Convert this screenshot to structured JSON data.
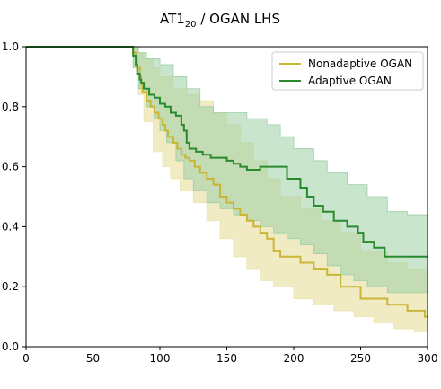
{
  "chart_data": {
    "type": "line",
    "title": "AT1",
    "title_subscript": "20",
    "title_rest": " / OGAN LHS",
    "xlabel": "",
    "ylabel": "",
    "xlim": [
      0,
      300
    ],
    "ylim": [
      0,
      1.0
    ],
    "x_ticks": [
      0,
      50,
      100,
      150,
      200,
      250,
      300
    ],
    "y_ticks": [
      0.0,
      0.2,
      0.4,
      0.6,
      0.8,
      1.0
    ],
    "y_tick_labels": [
      "0.0",
      "0.2",
      "0.4",
      "0.6",
      "0.8",
      "1.0"
    ],
    "grid": false,
    "legend": "top-right",
    "series": [
      {
        "name": "Nonadaptive OGAN",
        "color": "#c9b536",
        "band_color": "#ece4b0",
        "step": [
          [
            0,
            1.0
          ],
          [
            78,
            1.0
          ],
          [
            80,
            0.98
          ],
          [
            82,
            0.96
          ],
          [
            83,
            0.93
          ],
          [
            85,
            0.9
          ],
          [
            86,
            0.88
          ],
          [
            87,
            0.85
          ],
          [
            90,
            0.82
          ],
          [
            93,
            0.8
          ],
          [
            96,
            0.78
          ],
          [
            99,
            0.76
          ],
          [
            102,
            0.74
          ],
          [
            104,
            0.72
          ],
          [
            106,
            0.7
          ],
          [
            110,
            0.68
          ],
          [
            113,
            0.66
          ],
          [
            116,
            0.64
          ],
          [
            119,
            0.63
          ],
          [
            122,
            0.62
          ],
          [
            126,
            0.6
          ],
          [
            130,
            0.58
          ],
          [
            135,
            0.56
          ],
          [
            140,
            0.54
          ],
          [
            145,
            0.5
          ],
          [
            150,
            0.48
          ],
          [
            155,
            0.46
          ],
          [
            160,
            0.44
          ],
          [
            165,
            0.42
          ],
          [
            170,
            0.4
          ],
          [
            175,
            0.38
          ],
          [
            180,
            0.36
          ],
          [
            185,
            0.32
          ],
          [
            190,
            0.3
          ],
          [
            205,
            0.28
          ],
          [
            215,
            0.26
          ],
          [
            225,
            0.24
          ],
          [
            235,
            0.2
          ],
          [
            250,
            0.16
          ],
          [
            270,
            0.14
          ],
          [
            285,
            0.12
          ],
          [
            298,
            0.1
          ],
          [
            300,
            0.1
          ]
        ],
        "upper": [
          [
            0,
            1.0
          ],
          [
            78,
            1.0
          ],
          [
            80,
            1.0
          ],
          [
            84,
            0.98
          ],
          [
            88,
            0.96
          ],
          [
            95,
            0.93
          ],
          [
            100,
            0.9
          ],
          [
            110,
            0.86
          ],
          [
            120,
            0.84
          ],
          [
            130,
            0.82
          ],
          [
            140,
            0.78
          ],
          [
            150,
            0.74
          ],
          [
            160,
            0.68
          ],
          [
            170,
            0.62
          ],
          [
            180,
            0.56
          ],
          [
            190,
            0.5
          ],
          [
            205,
            0.46
          ],
          [
            220,
            0.42
          ],
          [
            235,
            0.38
          ],
          [
            250,
            0.32
          ],
          [
            270,
            0.28
          ],
          [
            285,
            0.26
          ],
          [
            300,
            0.2
          ]
        ],
        "lower": [
          [
            0,
            1.0
          ],
          [
            78,
            1.0
          ],
          [
            80,
            0.93
          ],
          [
            84,
            0.84
          ],
          [
            88,
            0.75
          ],
          [
            95,
            0.65
          ],
          [
            102,
            0.6
          ],
          [
            108,
            0.56
          ],
          [
            115,
            0.52
          ],
          [
            125,
            0.48
          ],
          [
            135,
            0.42
          ],
          [
            145,
            0.36
          ],
          [
            155,
            0.3
          ],
          [
            165,
            0.26
          ],
          [
            175,
            0.22
          ],
          [
            185,
            0.2
          ],
          [
            200,
            0.16
          ],
          [
            215,
            0.14
          ],
          [
            230,
            0.12
          ],
          [
            245,
            0.1
          ],
          [
            260,
            0.08
          ],
          [
            275,
            0.06
          ],
          [
            290,
            0.05
          ],
          [
            300,
            0.04
          ]
        ]
      },
      {
        "name": "Adaptive OGAN",
        "color": "#2a8a2f",
        "band_color": "#9ccfa5",
        "step": [
          [
            0,
            1.0
          ],
          [
            78,
            1.0
          ],
          [
            80,
            0.97
          ],
          [
            82,
            0.94
          ],
          [
            83,
            0.91
          ],
          [
            85,
            0.89
          ],
          [
            86,
            0.88
          ],
          [
            88,
            0.86
          ],
          [
            90,
            0.86
          ],
          [
            92,
            0.84
          ],
          [
            96,
            0.83
          ],
          [
            100,
            0.81
          ],
          [
            104,
            0.8
          ],
          [
            108,
            0.78
          ],
          [
            112,
            0.77
          ],
          [
            116,
            0.74
          ],
          [
            118,
            0.72
          ],
          [
            120,
            0.68
          ],
          [
            122,
            0.66
          ],
          [
            127,
            0.65
          ],
          [
            132,
            0.64
          ],
          [
            138,
            0.63
          ],
          [
            145,
            0.63
          ],
          [
            150,
            0.62
          ],
          [
            155,
            0.61
          ],
          [
            160,
            0.6
          ],
          [
            165,
            0.59
          ],
          [
            175,
            0.6
          ],
          [
            185,
            0.6
          ],
          [
            195,
            0.56
          ],
          [
            205,
            0.53
          ],
          [
            210,
            0.5
          ],
          [
            215,
            0.47
          ],
          [
            222,
            0.45
          ],
          [
            230,
            0.42
          ],
          [
            240,
            0.4
          ],
          [
            248,
            0.38
          ],
          [
            252,
            0.35
          ],
          [
            260,
            0.33
          ],
          [
            268,
            0.3
          ],
          [
            280,
            0.3
          ],
          [
            300,
            0.3
          ]
        ],
        "upper": [
          [
            0,
            1.0
          ],
          [
            78,
            1.0
          ],
          [
            80,
            1.0
          ],
          [
            84,
            0.98
          ],
          [
            90,
            0.96
          ],
          [
            100,
            0.94
          ],
          [
            110,
            0.9
          ],
          [
            120,
            0.86
          ],
          [
            130,
            0.8
          ],
          [
            140,
            0.78
          ],
          [
            150,
            0.78
          ],
          [
            165,
            0.76
          ],
          [
            180,
            0.74
          ],
          [
            190,
            0.7
          ],
          [
            200,
            0.66
          ],
          [
            215,
            0.62
          ],
          [
            225,
            0.58
          ],
          [
            240,
            0.54
          ],
          [
            255,
            0.5
          ],
          [
            270,
            0.45
          ],
          [
            285,
            0.44
          ],
          [
            300,
            0.43
          ]
        ],
        "lower": [
          [
            0,
            1.0
          ],
          [
            78,
            1.0
          ],
          [
            80,
            0.93
          ],
          [
            84,
            0.86
          ],
          [
            90,
            0.8
          ],
          [
            96,
            0.76
          ],
          [
            100,
            0.72
          ],
          [
            105,
            0.68
          ],
          [
            112,
            0.62
          ],
          [
            118,
            0.56
          ],
          [
            125,
            0.52
          ],
          [
            135,
            0.48
          ],
          [
            145,
            0.46
          ],
          [
            155,
            0.44
          ],
          [
            165,
            0.42
          ],
          [
            175,
            0.4
          ],
          [
            185,
            0.38
          ],
          [
            195,
            0.36
          ],
          [
            205,
            0.34
          ],
          [
            215,
            0.31
          ],
          [
            225,
            0.27
          ],
          [
            235,
            0.24
          ],
          [
            245,
            0.22
          ],
          [
            255,
            0.2
          ],
          [
            270,
            0.18
          ],
          [
            285,
            0.18
          ],
          [
            300,
            0.18
          ]
        ]
      }
    ]
  }
}
